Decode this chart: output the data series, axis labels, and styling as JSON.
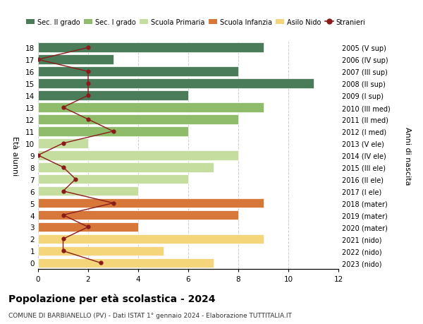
{
  "ages": [
    18,
    17,
    16,
    15,
    14,
    13,
    12,
    11,
    10,
    9,
    8,
    7,
    6,
    5,
    4,
    3,
    2,
    1,
    0
  ],
  "right_labels": [
    "2005 (V sup)",
    "2006 (IV sup)",
    "2007 (III sup)",
    "2008 (II sup)",
    "2009 (I sup)",
    "2010 (III med)",
    "2011 (II med)",
    "2012 (I med)",
    "2013 (V ele)",
    "2014 (IV ele)",
    "2015 (III ele)",
    "2016 (II ele)",
    "2017 (I ele)",
    "2018 (mater)",
    "2019 (mater)",
    "2020 (mater)",
    "2021 (nido)",
    "2022 (nido)",
    "2023 (nido)"
  ],
  "bar_values": [
    9,
    3,
    8,
    11,
    6,
    9,
    8,
    6,
    2,
    8,
    7,
    6,
    4,
    9,
    8,
    4,
    9,
    5,
    7
  ],
  "bar_colors": [
    "#4a7c59",
    "#4a7c59",
    "#4a7c59",
    "#4a7c59",
    "#4a7c59",
    "#8fbc6a",
    "#8fbc6a",
    "#8fbc6a",
    "#c5dea0",
    "#c5dea0",
    "#c5dea0",
    "#c5dea0",
    "#c5dea0",
    "#d8773a",
    "#d8773a",
    "#d8773a",
    "#f5d57a",
    "#f5d57a",
    "#f5d57a"
  ],
  "stranieri_values": [
    2,
    0,
    2,
    2,
    2,
    1,
    2,
    3,
    1,
    0,
    1,
    1.5,
    1,
    3,
    1,
    2,
    1,
    1,
    2.5
  ],
  "legend_labels": [
    "Sec. II grado",
    "Sec. I grado",
    "Scuola Primaria",
    "Scuola Infanzia",
    "Asilo Nido",
    "Stranieri"
  ],
  "legend_colors": [
    "#4a7c59",
    "#8fbc6a",
    "#c5dea0",
    "#d8773a",
    "#f5d57a",
    "#8b1a1a"
  ],
  "title": "Popolazione per età scolastica - 2024",
  "subtitle": "COMUNE DI BARBIANELLO (PV) - Dati ISTAT 1° gennaio 2024 - Elaborazione TUTTITALIA.IT",
  "ylabel_left": "Età alunni",
  "ylabel_right": "Anni di nascita",
  "xlim": [
    0,
    12
  ],
  "background_color": "#ffffff",
  "grid_color": "#cccccc"
}
